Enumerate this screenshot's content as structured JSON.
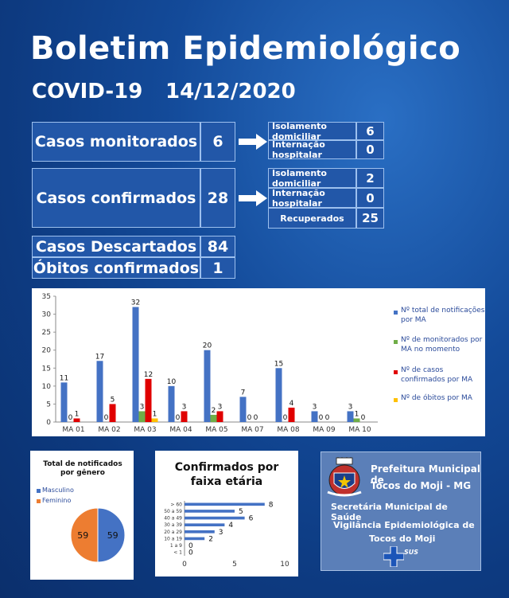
{
  "header": {
    "title": "Boletim Epidemiológico",
    "subtitle_left": "COVID-19",
    "subtitle_right": "14/12/2020"
  },
  "monitored": {
    "label": "Casos monitorados",
    "value": "6",
    "details": [
      {
        "label": "Isolamento domiciliar",
        "value": "6"
      },
      {
        "label": "Internação hospitalar",
        "value": "0"
      }
    ]
  },
  "confirmed": {
    "label": "Casos confirmados",
    "value": "28",
    "details": [
      {
        "label": "Isolamento domiciliar",
        "value": "2"
      },
      {
        "label": "Internação hospitalar",
        "value": "0"
      },
      {
        "label": "Recuperados",
        "value": "25"
      }
    ]
  },
  "discarded": {
    "label": "Casos Descartados",
    "value": "84"
  },
  "deaths": {
    "label": "Óbitos confirmados",
    "value": "1"
  },
  "colors": {
    "blue": "#4472c4",
    "green": "#70ad47",
    "red": "#e00000",
    "yellow": "#ffc000",
    "orange": "#ed7d31"
  },
  "chart_data": [
    {
      "type": "bar",
      "categories": [
        "MA 01",
        "MA 02",
        "MA 03",
        "MA 04",
        "MA 05",
        "MA 07",
        "MA 08",
        "MA 09",
        "MA 10"
      ],
      "series": [
        {
          "name": "Nº total de notificações por MA",
          "values": [
            11,
            17,
            32,
            10,
            20,
            7,
            15,
            3,
            3
          ]
        },
        {
          "name": "Nº de monitorados por MA no momento",
          "values": [
            0,
            0,
            3,
            0,
            2,
            0,
            0,
            0,
            1
          ]
        },
        {
          "name": "Nº de casos confirmados por MA",
          "values": [
            1,
            5,
            12,
            3,
            3,
            0,
            4,
            0,
            0
          ]
        },
        {
          "name": "Nº de óbitos por MA",
          "values": [
            0,
            0,
            1,
            0,
            0,
            0,
            0,
            0,
            0
          ]
        }
      ],
      "ylim": [
        0,
        35
      ],
      "yticks": [
        0,
        5,
        10,
        15,
        20,
        25,
        30,
        35
      ],
      "legend": "right"
    },
    {
      "type": "pie",
      "title": "Total de notificados  por gênero",
      "labels": [
        "Masculino",
        "Feminino"
      ],
      "values": [
        59,
        59
      ],
      "legend": "top-left"
    },
    {
      "type": "bar",
      "orientation": "horizontal",
      "title": "Confirmados por faixa etária",
      "categories": [
        "> 60",
        "50 a 59",
        "40 a 49",
        "30 a 39",
        "20 a 29",
        "10 a 19",
        "1 a 9",
        "< 1"
      ],
      "values": [
        8,
        5,
        6,
        4,
        3,
        2,
        0,
        0
      ],
      "xlim": [
        0,
        10
      ],
      "xticks": [
        0,
        5,
        10
      ]
    }
  ],
  "footer": {
    "line1": "Prefeitura Municipal de",
    "line2": "Tocos do Moji - MG",
    "line3": "Secretária Municipal de Saúde",
    "line4": "Vigilância Epidemiológica de",
    "line5": "Tocos do Moji",
    "sus": "SUS"
  }
}
